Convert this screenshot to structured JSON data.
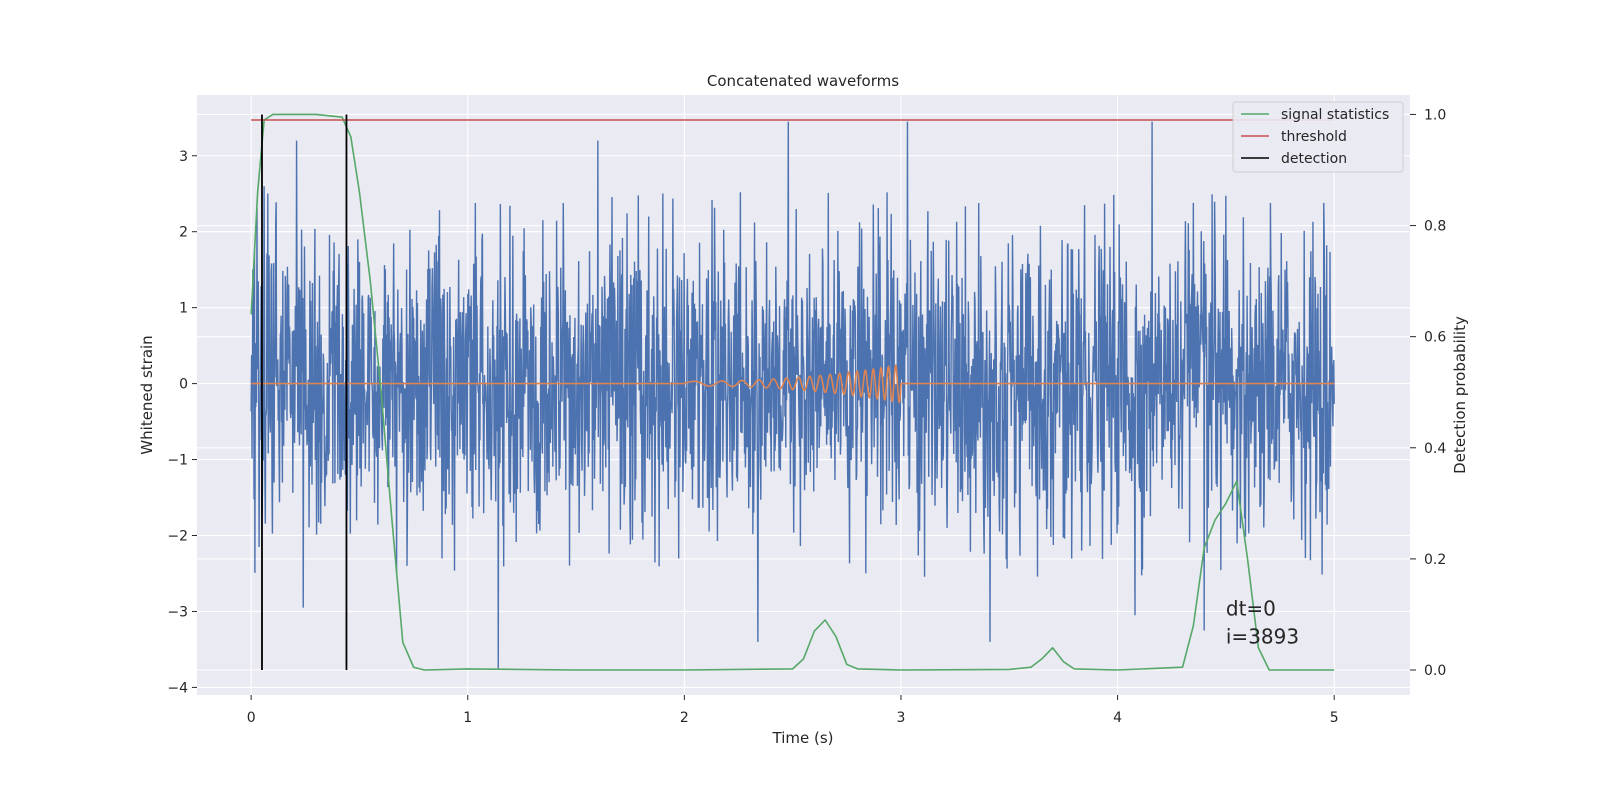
{
  "chart_data": {
    "type": "line",
    "title": "Concatenated waveforms",
    "xlabel": "Time (s)",
    "ylabel": "Whitened strain",
    "y2label": "Detection probability",
    "xlim": [
      -0.25,
      5.35
    ],
    "ylim": [
      -4.1,
      3.8
    ],
    "y2lim": [
      -0.045,
      1.035
    ],
    "xticks": [
      0,
      1,
      2,
      3,
      4,
      5
    ],
    "yticks": [
      -4,
      -3,
      -2,
      -1,
      0,
      1,
      2,
      3
    ],
    "y2ticks": [
      "0.0",
      "0.2",
      "0.4",
      "0.6",
      "0.8",
      "1.0"
    ],
    "grid": true,
    "legend_position": "top-right",
    "legend": [
      {
        "label": "signal statistics",
        "color": "#55a868"
      },
      {
        "label": "threshold",
        "color": "#c44e52"
      },
      {
        "label": "detection",
        "color": "#000000"
      }
    ],
    "series": [
      {
        "name": "noise",
        "axis": "left",
        "color": "#4c72b0",
        "description_range": [
          0,
          5
        ],
        "typical_amplitude": [
          -2.5,
          2.5
        ],
        "spikes": [
          {
            "x": 0.06,
            "y": 2.6
          },
          {
            "x": 0.21,
            "y": 3.2
          },
          {
            "x": 1.6,
            "y": 3.2
          },
          {
            "x": 2.48,
            "y": 3.45
          },
          {
            "x": 3.03,
            "y": 3.45
          },
          {
            "x": 4.16,
            "y": 3.45
          },
          {
            "x": 1.14,
            "y": -3.75
          },
          {
            "x": 2.34,
            "y": -3.4
          },
          {
            "x": 3.41,
            "y": -3.4
          },
          {
            "x": 4.08,
            "y": -3.05
          },
          {
            "x": 4.4,
            "y": -3.25
          },
          {
            "x": 0.24,
            "y": -2.95
          }
        ]
      },
      {
        "name": "injected chirp",
        "axis": "left",
        "color": "#dd8452",
        "x_start": 2.0,
        "x_end": 3.0,
        "peak_amplitude": 0.25
      },
      {
        "name": "signal statistics",
        "axis": "right",
        "color": "#55a868",
        "x": [
          0.0,
          0.03,
          0.06,
          0.1,
          0.2,
          0.3,
          0.42,
          0.46,
          0.5,
          0.55,
          0.6,
          0.65,
          0.7,
          0.75,
          0.8,
          1.0,
          1.5,
          2.0,
          2.5,
          2.55,
          2.6,
          2.65,
          2.7,
          2.75,
          2.8,
          3.0,
          3.5,
          3.6,
          3.65,
          3.7,
          3.75,
          3.8,
          4.0,
          4.3,
          4.35,
          4.4,
          4.45,
          4.5,
          4.55,
          4.6,
          4.65,
          4.7,
          5.0
        ],
        "y": [
          0.64,
          0.86,
          0.99,
          1.0,
          1.0,
          1.0,
          0.995,
          0.96,
          0.86,
          0.7,
          0.5,
          0.27,
          0.05,
          0.005,
          0.0,
          0.002,
          0.0,
          0.0,
          0.002,
          0.02,
          0.07,
          0.09,
          0.06,
          0.01,
          0.002,
          0.0,
          0.001,
          0.005,
          0.02,
          0.04,
          0.015,
          0.002,
          0.0,
          0.005,
          0.08,
          0.22,
          0.27,
          0.3,
          0.34,
          0.2,
          0.04,
          0.0,
          0.0
        ]
      },
      {
        "name": "threshold",
        "axis": "right",
        "color": "#c44e52",
        "x": [
          0.0,
          5.0
        ],
        "y": [
          0.99,
          0.99
        ]
      }
    ],
    "detections": {
      "color": "#000000",
      "x": [
        0.05,
        0.44
      ],
      "y_range": [
        0.0,
        1.0
      ]
    },
    "annotations": [
      {
        "text": "dt=0",
        "x": 4.5,
        "y": -3.05
      },
      {
        "text": "i=3893",
        "x": 4.5,
        "y": -3.42
      }
    ]
  }
}
